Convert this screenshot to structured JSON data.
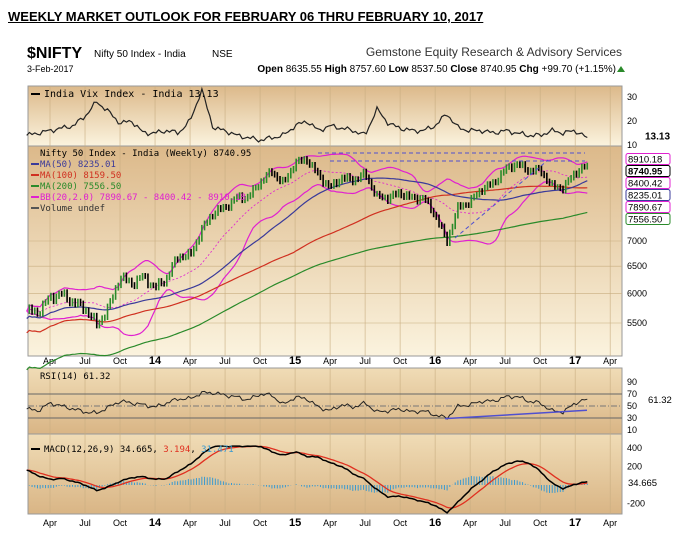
{
  "page_title": "WEEKLY MARKET OUTLOOK FOR FEBRUARY 06 THRU FEBRUARY 10, 2017",
  "chart_data": {
    "type": "line",
    "symbol": "$NIFTY",
    "name": "Nifty 50 Index - India",
    "exchange": "NSE",
    "provider": "Gemstone Equity Research & Advisory Services",
    "date": "3-Feb-2017",
    "quote": {
      "open_label": "Open",
      "open": "8635.55",
      "high_label": "High",
      "high": "8757.60",
      "low_label": "Low",
      "low": "8537.50",
      "close_label": "Close",
      "close": "8740.95",
      "chg_label": "Chg",
      "chg": "+99.70 (+1.15%)"
    },
    "x_ticks": [
      "Apr",
      "Jul",
      "Oct",
      "14",
      "Apr",
      "Jul",
      "Oct",
      "15",
      "Apr",
      "Jul",
      "Oct",
      "16",
      "Apr",
      "Jul",
      "Oct",
      "17",
      "Apr"
    ],
    "months_start": "2013-02",
    "vix": {
      "legend": "India Vix Index - India 13.13",
      "last": "13.13",
      "y_ticks": [
        "30",
        "20",
        "10"
      ],
      "values": [
        14,
        15,
        16,
        17,
        18,
        22,
        28,
        24,
        19,
        20,
        15,
        15,
        16,
        15,
        20,
        33,
        17,
        16,
        14,
        13,
        12,
        13,
        14,
        18,
        20,
        16,
        18,
        17,
        16,
        14,
        25,
        19,
        17,
        16,
        16,
        18,
        23,
        17,
        16,
        16,
        15,
        16,
        15,
        14,
        14,
        16,
        15,
        16,
        13.13
      ]
    },
    "price": {
      "legend": "Nifty 50 Index - India (Weekly) 8740.95",
      "scale": "log",
      "y_ticks": [
        5500,
        6000,
        6500,
        7000
      ],
      "values": [
        5693,
        5682,
        5930,
        5986,
        5842,
        5742,
        5471,
        5735,
        6299,
        6176,
        6304,
        6090,
        6277,
        6704,
        6696,
        7230,
        7611,
        7721,
        7954,
        7965,
        8322,
        8588,
        8283,
        8809,
        8902,
        8491,
        8182,
        8434,
        8369,
        8533,
        7971,
        7949,
        8066,
        7935,
        7946,
        7564,
        6987,
        7738,
        7850,
        8160,
        8288,
        8639,
        8786,
        8611,
        8626,
        8224,
        8186,
        8561,
        8740.95
      ],
      "overlays": [
        {
          "label": "MA(50) 8235.01",
          "tag": "8235.01",
          "color": "#3a3a9a"
        },
        {
          "label": "MA(100) 8159.50",
          "tag": "8159.50",
          "color": "#d03020"
        },
        {
          "label": "MA(200) 7556.50",
          "tag": "7556.50",
          "color": "#2a8a2a"
        },
        {
          "label": "BB(20,2.0) 7890.67 - 8400.42 - 8910.18",
          "tags": [
            "8910.18",
            "8400.42",
            "7890.67"
          ],
          "color": "#e020d0"
        },
        {
          "label": "Volume undef",
          "color": "#555555"
        }
      ]
    },
    "rsi": {
      "legend": "RSI(14) 61.32",
      "last": "61.32",
      "y_ticks": [
        "90",
        "70",
        "50",
        "30",
        "10"
      ],
      "values": [
        45,
        42,
        55,
        50,
        45,
        40,
        38,
        48,
        58,
        55,
        52,
        48,
        55,
        62,
        62,
        72,
        72,
        68,
        65,
        60,
        70,
        68,
        52,
        65,
        62,
        48,
        42,
        52,
        48,
        55,
        40,
        42,
        45,
        40,
        42,
        35,
        30,
        50,
        52,
        58,
        58,
        65,
        66,
        58,
        55,
        42,
        40,
        55,
        61.32
      ]
    },
    "macd": {
      "legend_prefix": "MACD(12,26,9) 34.665",
      "signal_value": "3.194",
      "hist_value": "31.471",
      "last": "34.665",
      "y_ticks": [
        "400",
        "200",
        "-200"
      ],
      "values": [
        160,
        100,
        60,
        70,
        40,
        0,
        -60,
        -20,
        40,
        80,
        90,
        60,
        70,
        150,
        220,
        330,
        420,
        420,
        420,
        420,
        420,
        360,
        320,
        360,
        310,
        300,
        240,
        200,
        120,
        60,
        -50,
        -130,
        -120,
        -150,
        -180,
        -220,
        -300,
        -180,
        -50,
        50,
        150,
        220,
        260,
        240,
        150,
        20,
        -40,
        10,
        34.665
      ]
    },
    "colors": {
      "up": "#2a8a2a",
      "down": "#000000",
      "hist": "#3a9ad0",
      "signal": "#e03020",
      "trend": "#5050d0"
    }
  }
}
